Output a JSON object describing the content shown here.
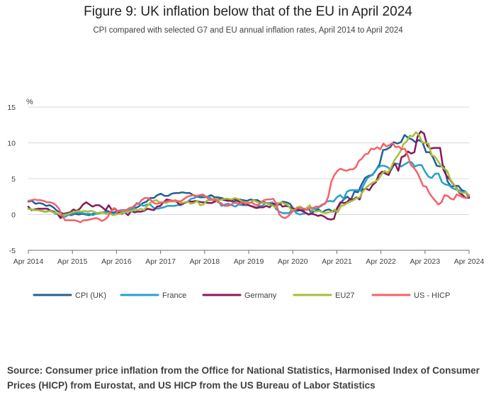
{
  "title": "Figure 9: UK inflation below that of the EU in April 2024",
  "subtitle": "CPI compared with selected G7 and EU annual inflation rates, April 2014 to April 2024",
  "source": "Source: Consumer price inflation from the Office for National Statistics, Harmonised Index of Consumer Prices (HICP) from Eurostat, and US HICP from the US Bureau of Labor Statistics",
  "chart_data": {
    "type": "line",
    "ylabel": "%",
    "xlabel": "",
    "ylim": [
      -5,
      15
    ],
    "yticks": [
      "15",
      "10",
      "5",
      "0",
      "-5"
    ],
    "xticks": [
      "Apr 2014",
      "Apr 2015",
      "Apr 2016",
      "Apr 2017",
      "Apr 2018",
      "Apr 2019",
      "Apr 2020",
      "Apr 2021",
      "Apr 2022",
      "Apr 2023",
      "Apr 2024"
    ],
    "x_start": "Apr 2014",
    "x_end": "Apr 2024",
    "grid": true,
    "legend": "bottom",
    "series": [
      {
        "name": "CPI (UK)",
        "color": "#206095",
        "values": [
          1.8,
          1.9,
          1.5,
          1.6,
          1.5,
          1.2,
          1.3,
          1.0,
          0.5,
          0.3,
          0.0,
          0.0,
          -0.1,
          0.1,
          0.0,
          0.1,
          0.0,
          -0.1,
          0.1,
          0.1,
          0.2,
          0.3,
          0.5,
          0.3,
          0.3,
          0.5,
          0.6,
          0.6,
          0.6,
          1.0,
          0.9,
          1.2,
          1.6,
          1.8,
          2.3,
          2.3,
          2.7,
          2.9,
          2.6,
          2.6,
          2.9,
          3.0,
          3.0,
          3.1,
          3.0,
          3.0,
          2.7,
          2.5,
          2.4,
          2.4,
          2.5,
          2.7,
          2.4,
          2.4,
          2.3,
          2.1,
          2.0,
          1.8,
          1.9,
          2.1,
          2.0,
          1.9,
          2.1,
          2.0,
          2.0,
          1.7,
          1.7,
          1.5,
          1.5,
          1.3,
          1.4,
          1.8,
          1.7,
          1.5,
          0.8,
          0.5,
          0.6,
          0.6,
          1.0,
          0.2,
          0.5,
          0.7,
          0.3,
          0.6,
          0.7,
          0.4,
          0.7,
          1.5,
          2.1,
          2.5,
          2.0,
          3.2,
          3.1,
          4.2,
          5.1,
          5.4,
          5.5,
          6.2,
          7.0,
          9.0,
          9.1,
          9.4,
          10.1,
          9.9,
          10.1,
          11.1,
          10.7,
          10.5,
          10.1,
          10.4,
          10.1,
          8.7,
          8.7,
          7.9,
          6.8,
          6.7,
          6.7,
          4.6,
          3.9,
          4.0,
          4.0,
          3.4,
          3.2,
          2.3
        ]
      },
      {
        "name": "France",
        "color": "#27a0cc",
        "values": [
          0.8,
          0.7,
          0.6,
          0.6,
          0.5,
          0.4,
          0.5,
          0.4,
          0.1,
          0.1,
          -0.4,
          -0.3,
          0.0,
          0.1,
          0.3,
          0.3,
          0.2,
          0.1,
          0.1,
          -0.1,
          0.1,
          0.2,
          0.3,
          0.3,
          0.1,
          0.1,
          0.1,
          0.4,
          0.3,
          0.5,
          0.7,
          0.8,
          1.6,
          1.4,
          1.2,
          1.4,
          1.4,
          0.9,
          0.8,
          0.9,
          1.0,
          1.2,
          1.2,
          1.2,
          1.3,
          1.3,
          1.6,
          1.8,
          2.2,
          2.3,
          2.6,
          2.6,
          2.5,
          2.5,
          2.2,
          1.9,
          1.9,
          1.2,
          1.4,
          1.5,
          1.3,
          1.1,
          1.4,
          1.3,
          1.3,
          1.3,
          1.1,
          0.9,
          1.2,
          1.2,
          1.6,
          1.6,
          1.7,
          0.8,
          0.4,
          0.2,
          0.2,
          0.2,
          0.9,
          0.2,
          0.0,
          0.1,
          0.2,
          0.0,
          0.8,
          0.8,
          1.1,
          1.4,
          1.8,
          1.9,
          1.8,
          2.4,
          2.7,
          2.2,
          3.2,
          3.4,
          3.4,
          3.4,
          3.3,
          4.2,
          5.1,
          5.4,
          5.8,
          6.5,
          6.8,
          6.8,
          6.6,
          6.2,
          7.1,
          7.1,
          6.7,
          7.0,
          7.3,
          7.3,
          6.7,
          6.9,
          6.9,
          6.0,
          5.3,
          5.1,
          5.7,
          5.7,
          4.5,
          4.2,
          4.1,
          3.7,
          3.5,
          3.4,
          3.1,
          3.2,
          2.4
        ]
      },
      {
        "name": "Germany",
        "color": "#871a5b",
        "values": [
          1.1,
          0.6,
          0.7,
          0.8,
          0.8,
          0.8,
          0.8,
          0.5,
          0.4,
          0.1,
          -0.5,
          0.1,
          0.2,
          0.3,
          0.7,
          0.5,
          0.8,
          1.4,
          1.7,
          1.4,
          1.1,
          1.3,
          1.3,
          1.0,
          0.6,
          1.3,
          0.6,
          0.8,
          0.3,
          0.1,
          0.3,
          -0.1,
          0.5,
          0.3,
          0.4,
          0.4,
          0.5,
          0.8,
          0.7,
          0.6,
          1.1,
          1.2,
          1.7,
          2.1,
          2.0,
          1.9,
          1.8,
          1.4,
          1.5,
          1.7,
          1.8,
          1.8,
          1.9,
          1.8,
          1.7,
          1.7,
          1.6,
          1.6,
          1.8,
          2.1,
          2.1,
          2.0,
          1.9,
          1.9,
          2.2,
          1.9,
          1.7,
          1.4,
          1.4,
          1.2,
          1.1,
          0.9,
          1.0,
          1.0,
          1.2,
          1.0,
          1.5,
          1.5,
          1.6,
          1.1,
          1.2,
          1.1,
          0.8,
          0.8,
          0.7,
          0.5,
          0.3,
          0.0,
          0.1,
          0.0,
          -0.2,
          -0.1,
          -0.3,
          -0.6,
          -0.7,
          -0.6,
          0.9,
          1.7,
          1.6,
          1.7,
          2.2,
          2.1,
          2.4,
          2.1,
          3.5,
          3.6,
          3.4,
          4.1,
          4.5,
          5.6,
          6.0,
          5.7,
          5.5,
          6.6,
          7.1,
          6.1,
          8.0,
          8.2,
          8.8,
          8.5,
          8.7,
          10.9,
          11.6,
          11.3,
          9.6,
          9.2,
          9.3,
          9.3,
          9.3,
          6.3,
          5.4,
          4.9,
          4.3,
          3.8,
          3.0,
          2.7,
          2.3,
          2.4
        ]
      },
      {
        "name": "EU27",
        "color": "#a8bd3a",
        "values": [
          0.8,
          0.7,
          0.6,
          0.6,
          0.5,
          0.4,
          0.4,
          0.5,
          0.3,
          0.2,
          0.0,
          -0.1,
          0.0,
          0.1,
          0.3,
          0.4,
          0.5,
          0.4,
          0.5,
          0.4,
          0.5,
          0.4,
          0.2,
          0.3,
          0.2,
          0.1,
          0.2,
          -0.1,
          0.0,
          0.1,
          0.2,
          0.3,
          0.4,
          0.5,
          0.6,
          0.6,
          0.8,
          0.6,
          1.2,
          1.6,
          1.9,
          2.0,
          1.7,
          1.7,
          1.6,
          1.8,
          1.8,
          1.8,
          1.9,
          1.6,
          1.7,
          1.8,
          1.5,
          1.6,
          1.9,
          1.3,
          1.4,
          1.9,
          2.0,
          2.2,
          2.2,
          2.0,
          2.1,
          2.2,
          2.2,
          2.1,
          2.3,
          2.2,
          1.9,
          1.7,
          1.7,
          1.6,
          2.0,
          1.8,
          1.6,
          1.6,
          1.6,
          1.4,
          1.3,
          1.0,
          1.6,
          1.7,
          1.5,
          1.3,
          0.7,
          0.6,
          1.0,
          1.1,
          0.8,
          0.8,
          1.3,
          0.6,
          0.4,
          0.5,
          0.3,
          0.2,
          0.3,
          0.4,
          0.7,
          0.3,
          1.2,
          1.3,
          1.6,
          1.8,
          2.0,
          2.3,
          2.4,
          3.2,
          3.7,
          4.1,
          4.4,
          4.6,
          4.9,
          5.6,
          6.1,
          5.8,
          6.5,
          7.5,
          8.1,
          8.8,
          9.8,
          10.2,
          11.0,
          10.9,
          11.5,
          11.1,
          10.1,
          10.0,
          9.9,
          8.3,
          8.1,
          7.5,
          6.8,
          6.4,
          6.1,
          4.9,
          4.3,
          3.6,
          3.1,
          3.0,
          3.1,
          2.7
        ]
      },
      {
        "name": "US - HICP",
        "color": "#f66068",
        "values": [
          1.9,
          2.0,
          2.1,
          2.0,
          2.0,
          1.9,
          1.7,
          1.7,
          1.6,
          1.3,
          0.8,
          -0.1,
          -0.8,
          -0.8,
          -0.8,
          -0.8,
          -0.9,
          -1.1,
          -0.8,
          -0.8,
          -0.7,
          -0.6,
          -0.5,
          -0.6,
          -0.9,
          -0.7,
          -0.3,
          0.5,
          0.9,
          0.4,
          0.6,
          0.6,
          0.6,
          0.9,
          1.0,
          1.4,
          1.5,
          2.0,
          2.3,
          2.3,
          2.0,
          1.6,
          1.5,
          1.6,
          1.7,
          1.8,
          1.9,
          1.9,
          2.0,
          1.8,
          1.9,
          2.2,
          2.5,
          2.6,
          2.7,
          2.6,
          2.7,
          2.8,
          2.5,
          2.1,
          2.0,
          2.1,
          1.7,
          1.6,
          1.2,
          1.2,
          1.3,
          1.6,
          1.6,
          1.5,
          1.7,
          1.5,
          1.6,
          1.7,
          1.4,
          1.3,
          1.7,
          2.0,
          2.1,
          2.1,
          2.2,
          1.5,
          0.0,
          -0.4,
          -0.5,
          -0.2,
          0.3,
          0.6,
          0.9,
          0.9,
          0.8,
          0.6,
          0.9,
          0.9,
          1.1,
          1.1,
          1.4,
          1.5,
          2.5,
          4.6,
          5.5,
          6.1,
          6.4,
          6.2,
          6.1,
          6.3,
          6.3,
          6.6,
          7.5,
          7.8,
          8.4,
          8.5,
          9.2,
          9.1,
          9.4,
          9.1,
          9.9,
          9.5,
          9.7,
          10.0,
          9.4,
          9.5,
          9.1,
          9.2,
          8.2,
          6.9,
          6.5,
          5.9,
          5.0,
          4.0,
          3.9,
          3.0,
          2.4,
          1.9,
          1.4,
          1.7,
          2.7,
          2.6,
          2.2,
          2.1,
          2.8,
          2.6,
          2.4,
          2.3,
          2.6
        ]
      }
    ]
  }
}
